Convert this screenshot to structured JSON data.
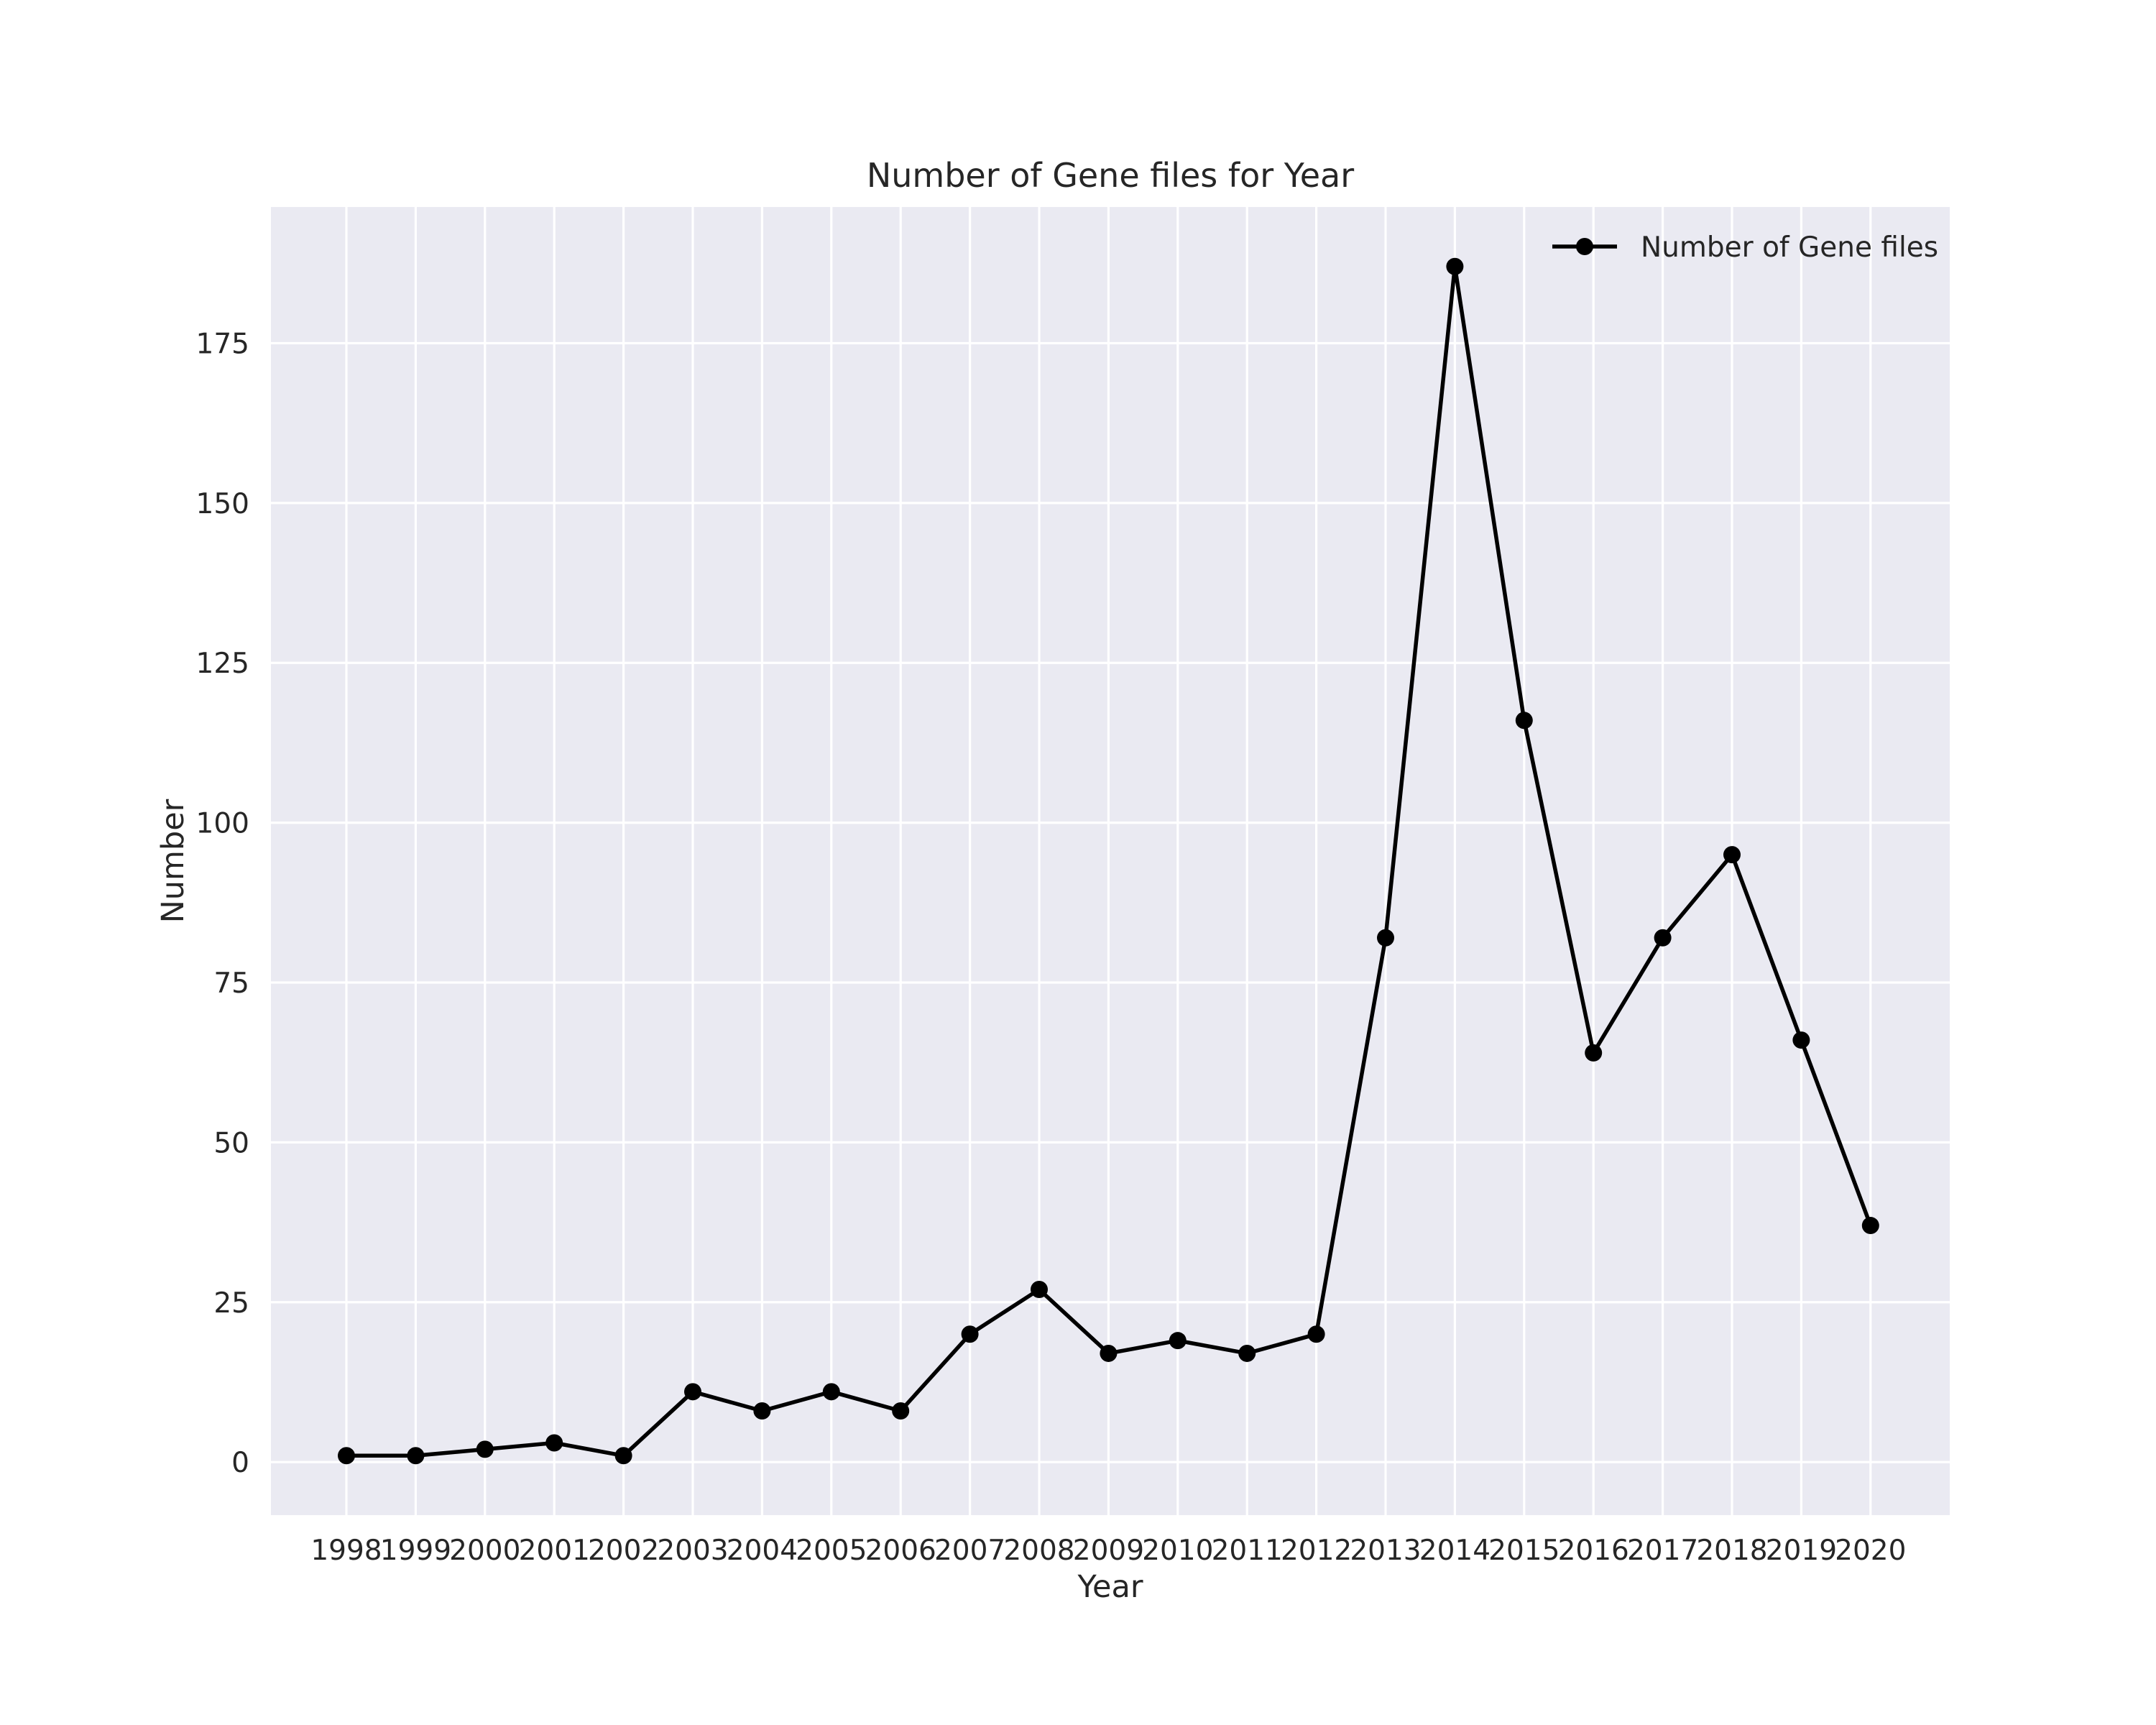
{
  "chart_data": {
    "type": "line",
    "title": "Number of Gene files for Year",
    "xlabel": "Year",
    "ylabel": "Number",
    "categories": [
      "1998",
      "1999",
      "2000",
      "2001",
      "2002",
      "2003",
      "2004",
      "2005",
      "2006",
      "2007",
      "2008",
      "2009",
      "2010",
      "2011",
      "2012",
      "2013",
      "2014",
      "2015",
      "2016",
      "2017",
      "2018",
      "2019",
      "2020"
    ],
    "series": [
      {
        "name": "Number of Gene files",
        "color": "#000000",
        "marker": "circle",
        "values": [
          1,
          1,
          2,
          3,
          1,
          11,
          8,
          11,
          8,
          20,
          27,
          17,
          19,
          17,
          20,
          82,
          187,
          116,
          64,
          82,
          95,
          66,
          37
        ]
      }
    ],
    "ylim": [
      -8.3,
      196.3
    ],
    "yticks": [
      0,
      25,
      50,
      75,
      100,
      125,
      150,
      175
    ],
    "grid": true,
    "background": "#EAEAF2",
    "grid_color": "#FFFFFF",
    "legend_position": "top-right"
  }
}
